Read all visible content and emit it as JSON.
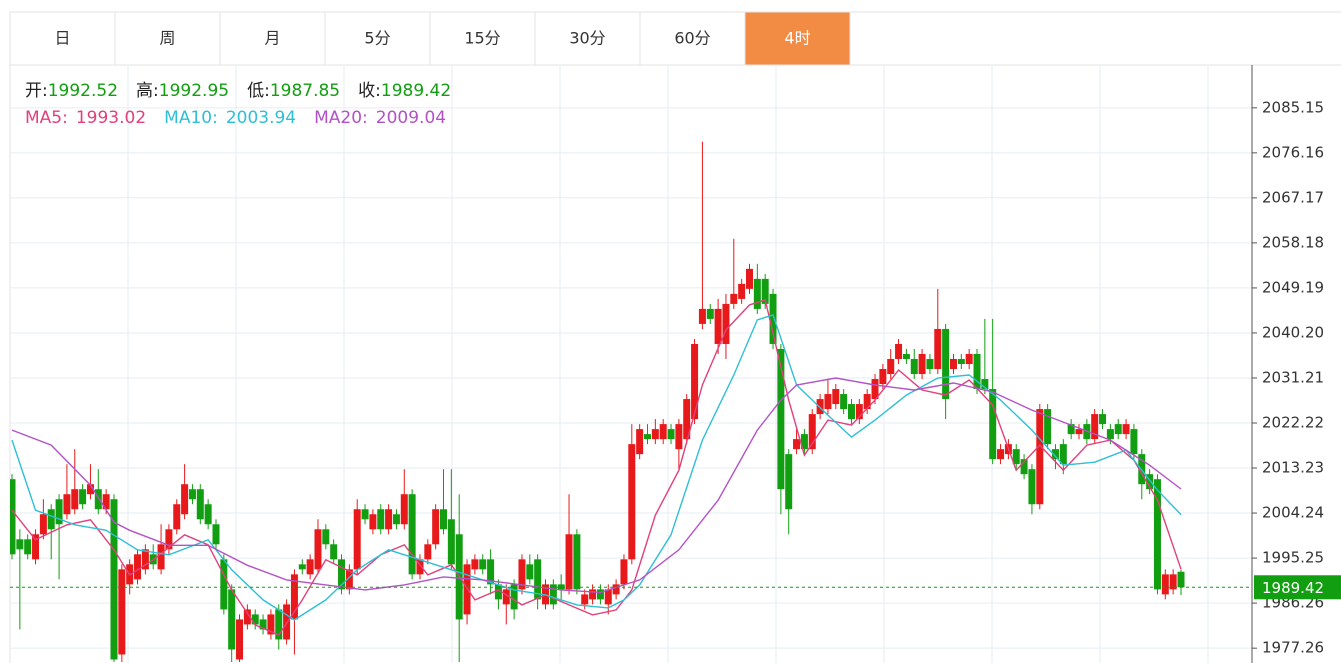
{
  "tabs": [
    "日",
    "周",
    "月",
    "5分",
    "15分",
    "30分",
    "60分",
    "4时"
  ],
  "active_tab": "4时",
  "chart_data": {
    "type": "candlestick",
    "ohlc_labels": [
      "开:",
      "高:",
      "低:",
      "收:"
    ],
    "up_color": "#e8191a",
    "down_color": "#119e11",
    "ylim": [
      1974.3,
      2093.7
    ],
    "yticks": [
      2085.15,
      2076.16,
      2067.17,
      2058.18,
      2049.19,
      {
        "value": 2040.2,
        "label": "2040.20"
      },
      2031.21,
      2022.22,
      2013.23,
      2004.24,
      1995.25,
      1986.26,
      1977.26
    ],
    "grid": true,
    "candles": [
      [
        2011,
        2012,
        1995,
        1996
      ],
      [
        1999,
        2001,
        1981,
        1997
      ],
      [
        1999,
        2000,
        1995,
        1996
      ],
      [
        1995,
        2001,
        1994,
        2000
      ],
      [
        2000,
        2007,
        1999,
        2004
      ],
      [
        2005,
        2006,
        1995,
        2001
      ],
      [
        2007,
        2008,
        1991,
        2002
      ],
      [
        2004,
        2014,
        2003,
        2008
      ],
      [
        2005,
        2017,
        2004,
        2009
      ],
      [
        2009,
        2010,
        2005,
        2006
      ],
      [
        2008,
        2014,
        2007,
        2010
      ],
      [
        2009,
        2013,
        2004,
        2005
      ],
      [
        2005,
        2009,
        2004,
        2008
      ],
      [
        2007,
        2008,
        1974.5,
        1975
      ],
      [
        1976,
        1994,
        1974.5,
        1993
      ],
      [
        1990,
        1995,
        1988,
        1994
      ],
      [
        1991,
        1997,
        1990,
        1996
      ],
      [
        1993,
        1998,
        1992,
        1997
      ],
      [
        1996,
        1998,
        1993,
        1994
      ],
      [
        1993,
        2002,
        1992,
        1998
      ],
      [
        1997,
        2002,
        1996,
        2001
      ],
      [
        2001,
        2007,
        2000,
        2006
      ],
      [
        2004,
        2014,
        2003,
        2010
      ],
      [
        2009,
        2010,
        2006,
        2007
      ],
      [
        2009,
        2010,
        2002,
        2003
      ],
      [
        2006,
        2007,
        2001,
        2002
      ],
      [
        2002,
        2003,
        1997,
        1998
      ],
      [
        1995,
        1996,
        1984,
        1985
      ],
      [
        1989,
        1990,
        1974.5,
        1977
      ],
      [
        1975,
        1984,
        1974.5,
        1983
      ],
      [
        1982,
        1986,
        1981,
        1985
      ],
      [
        1984,
        1985,
        1981,
        1982
      ],
      [
        1983,
        1984,
        1980,
        1981
      ],
      [
        1980,
        1985,
        1979,
        1984
      ],
      [
        1985,
        1986,
        1977,
        1979
      ],
      [
        1979,
        1987,
        1978,
        1986
      ],
      [
        1983,
        1993,
        1976,
        1992
      ],
      [
        1994,
        1995,
        1992,
        1993
      ],
      [
        1992,
        1996,
        1991,
        1995
      ],
      [
        1993,
        2003,
        1992,
        2001
      ],
      [
        2001,
        2002,
        1997,
        1998
      ],
      [
        1998,
        1999,
        1994,
        1995
      ],
      [
        1995,
        1996,
        1988,
        1989
      ],
      [
        1989,
        1994,
        1988,
        1993
      ],
      [
        1993,
        2007,
        1992,
        2005
      ],
      [
        2005,
        2006,
        2002,
        2003
      ],
      [
        2001,
        2005,
        2000,
        2004
      ],
      [
        2005,
        2006,
        2000,
        2001
      ],
      [
        2001,
        2006,
        2000,
        2005
      ],
      [
        2004,
        2005,
        2001,
        2002
      ],
      [
        2002,
        2013,
        2001,
        2008
      ],
      [
        2008,
        2009,
        1991,
        1992
      ],
      [
        1992,
        1996,
        1991,
        1995
      ],
      [
        1995,
        1999,
        1994,
        1998
      ],
      [
        1998,
        2006,
        1997,
        2005
      ],
      [
        2005,
        2013,
        2000,
        2001
      ],
      [
        2003,
        2013,
        1993,
        1994
      ],
      [
        2000,
        2008,
        1974.5,
        1983
      ],
      [
        1984,
        1995,
        1982,
        1994
      ],
      [
        1993,
        1996,
        1992,
        1995
      ],
      [
        1995,
        1996,
        1992,
        1993
      ],
      [
        1995,
        1997,
        1988,
        1990
      ],
      [
        1990,
        1991,
        1985,
        1987
      ],
      [
        1986,
        1990,
        1982,
        1989
      ],
      [
        1990,
        1991,
        1983,
        1985
      ],
      [
        1989,
        1996,
        1988,
        1995
      ],
      [
        1994,
        1996,
        1990,
        1991
      ],
      [
        1995,
        1996,
        1985,
        1987
      ],
      [
        1986,
        1991,
        1985,
        1990
      ],
      [
        1990,
        1991,
        1985,
        1986
      ],
      [
        1990,
        1992,
        1987,
        1989
      ],
      [
        1989,
        2008,
        1988,
        2000
      ],
      [
        2000,
        2001,
        1988,
        1989
      ],
      [
        1986,
        1989,
        1985,
        1988
      ],
      [
        1987,
        1990,
        1986,
        1989
      ],
      [
        1989,
        1990,
        1986,
        1987
      ],
      [
        1986,
        1990,
        1984,
        1989
      ],
      [
        1988,
        1991,
        1987,
        1990
      ],
      [
        1990,
        1996,
        1989,
        1995
      ],
      [
        1995,
        2022,
        1994,
        2018
      ],
      [
        2016,
        2022,
        2015,
        2021
      ],
      [
        2020,
        2022,
        2018,
        2019
      ],
      [
        2019,
        2023,
        2018,
        2021
      ],
      [
        2019,
        2023,
        2018,
        2022
      ],
      [
        2021,
        2022,
        2018,
        2019
      ],
      [
        2017,
        2023,
        2013,
        2022
      ],
      [
        2019,
        2028,
        2018,
        2027
      ],
      [
        2023,
        2039,
        2022,
        2038
      ],
      [
        2042,
        2078.4,
        2041,
        2045
      ],
      [
        2045,
        2046,
        2042,
        2043
      ],
      [
        2038,
        2047,
        2036,
        2045
      ],
      [
        2038,
        2048,
        2035,
        2046
      ],
      [
        2046,
        2059,
        2045,
        2048
      ],
      [
        2047,
        2051,
        2046,
        2050
      ],
      [
        2049,
        2054,
        2048,
        2053
      ],
      [
        2051,
        2054,
        2044,
        2045
      ],
      [
        2051,
        2052,
        2045,
        2046
      ],
      [
        2048,
        2049,
        2037,
        2038
      ],
      [
        2037,
        2038,
        2004,
        2009
      ],
      [
        2016,
        2017,
        2000,
        2005
      ],
      [
        2017,
        2021,
        2016,
        2019
      ],
      [
        2020,
        2021,
        2016,
        2017
      ],
      [
        2017,
        2025,
        2016,
        2024
      ],
      [
        2024,
        2028,
        2023,
        2027
      ],
      [
        2025,
        2031,
        2024,
        2028
      ],
      [
        2026,
        2030,
        2025,
        2029
      ],
      [
        2028,
        2029,
        2024,
        2025
      ],
      [
        2026,
        2027,
        2022,
        2023
      ],
      [
        2023,
        2027,
        2022,
        2026
      ],
      [
        2025,
        2029,
        2024,
        2028
      ],
      [
        2027,
        2032,
        2026,
        2031
      ],
      [
        2030,
        2034,
        2029,
        2033
      ],
      [
        2032,
        2037,
        2031,
        2035
      ],
      [
        2035,
        2039,
        2034,
        2038
      ],
      [
        2036,
        2037,
        2034,
        2035
      ],
      [
        2035,
        2037,
        2031,
        2032
      ],
      [
        2032,
        2037,
        2031,
        2036
      ],
      [
        2035,
        2036,
        2032,
        2033
      ],
      [
        2033,
        2049,
        2032,
        2041
      ],
      [
        2041,
        2042,
        2023,
        2027
      ],
      [
        2033,
        2036,
        2032,
        2035
      ],
      [
        2035,
        2036,
        2033,
        2034
      ],
      [
        2034,
        2037,
        2033,
        2036
      ],
      [
        2036,
        2037,
        2028,
        2029
      ],
      [
        2031,
        2043,
        2028,
        2029
      ],
      [
        2029,
        2043,
        2014,
        2015
      ],
      [
        2015,
        2018,
        2014,
        2017
      ],
      [
        2016,
        2019,
        2015,
        2018
      ],
      [
        2017,
        2018,
        2013,
        2014
      ],
      [
        2015,
        2016,
        2011,
        2012
      ],
      [
        2013,
        2014,
        2004,
        2006
      ],
      [
        2006,
        2026,
        2005,
        2025
      ],
      [
        2025,
        2026,
        2017,
        2018
      ],
      [
        2017,
        2018,
        2013,
        2015
      ],
      [
        2018,
        2019,
        2012,
        2014
      ],
      [
        2022,
        2023,
        2019,
        2020
      ],
      [
        2020,
        2022,
        2019,
        2021
      ],
      [
        2022,
        2023,
        2018,
        2019
      ],
      [
        2019,
        2025,
        2018,
        2024
      ],
      [
        2024,
        2025,
        2021,
        2022
      ],
      [
        2021,
        2022,
        2018,
        2019
      ],
      [
        2022,
        2023,
        2019,
        2020
      ],
      [
        2020,
        2023,
        2019,
        2022
      ],
      [
        2021,
        2022,
        2015,
        2016
      ],
      [
        2016,
        2017,
        2007,
        2010
      ],
      [
        2012,
        2013,
        2008,
        2009
      ],
      [
        2011,
        2012,
        1988,
        1989
      ],
      [
        1988,
        1993,
        1987,
        1992
      ],
      [
        1989,
        1993,
        1988,
        1992
      ],
      [
        1992.52,
        1992.95,
        1987.85,
        1989.42
      ]
    ],
    "series": [
      {
        "name": "MA5:",
        "color": "#e2407c",
        "x": [
          0,
          3,
          7,
          10,
          13,
          15,
          18,
          22,
          25,
          28,
          31,
          34,
          37,
          40,
          44,
          47,
          50,
          53,
          56,
          59,
          62,
          65,
          68,
          71,
          74,
          77,
          79,
          82,
          85,
          88,
          91,
          94,
          96,
          99,
          101,
          104,
          107,
          110,
          113,
          116,
          119,
          122,
          125,
          128,
          131,
          134,
          137,
          140,
          143,
          146,
          149
        ],
        "values": [
          2004.8,
          1998.9,
          2001.9,
          2002.9,
          1996.9,
          1991.9,
          1994.9,
          1999.9,
          1997.9,
          1988.9,
          1981.9,
          1979.9,
          1986.9,
          1994.9,
          1991.9,
          1995.9,
          1997.9,
          1991.9,
          1993.9,
          1986.9,
          1988.9,
          1985.9,
          1987.9,
          1985.9,
          1983.9,
          1984.9,
          1988.9,
          2003.8,
          2012.8,
          2029.8,
          2040.8,
          2045.8,
          2046.8,
          2026.8,
          2015.8,
          2022.8,
          2021.8,
          2026.8,
          2032.8,
          2028.8,
          2027.8,
          2030.8,
          2025.8,
          2012.8,
          2017.8,
          2012.8,
          2017.8,
          2018.8,
          2014.8,
          2006.8,
          1993.02
        ]
      },
      {
        "name": "MA10:",
        "color": "#2ebfd6",
        "x": [
          0,
          3,
          8,
          12,
          16,
          20,
          25,
          28,
          32,
          36,
          40,
          44,
          48,
          52,
          56,
          60,
          64,
          68,
          72,
          76,
          78,
          80,
          84,
          88,
          92,
          95,
          97,
          100,
          104,
          107,
          110,
          114,
          118,
          122,
          126,
          130,
          134,
          138,
          142,
          146,
          149
        ],
        "values": [
          2018.8,
          2004.8,
          2001.9,
          2000.8,
          1996.9,
          1995.9,
          1998.9,
          1992.9,
          1986.9,
          1982.9,
          1986.9,
          1992.9,
          1996.9,
          1994.9,
          1992.9,
          1990.9,
          1988.9,
          1987.9,
          1985.9,
          1985.3,
          1986.9,
          1989.9,
          1999.9,
          2018.8,
          2031.8,
          2042.8,
          2043.8,
          2029.8,
          2023.8,
          2019.4,
          2022.8,
          2027.8,
          2031.2,
          2031.8,
          2026.8,
          2020.8,
          2013.8,
          2014.4,
          2016.8,
          2008.8,
          2003.94
        ]
      },
      {
        "name": "MA20:",
        "color": "#b352c6",
        "x": [
          0,
          5,
          10,
          13,
          15,
          20,
          25,
          30,
          35,
          40,
          45,
          50,
          55,
          60,
          65,
          70,
          75,
          80,
          85,
          90,
          95,
          98,
          100,
          105,
          110,
          115,
          120,
          125,
          130,
          135,
          140,
          145,
          149
        ],
        "values": [
          2020.8,
          2017.8,
          2009.8,
          2002.4,
          2000.8,
          1997.8,
          1997.8,
          1993.8,
          1990.9,
          1989.9,
          1988.9,
          1989.9,
          1991.5,
          1990.9,
          1989.9,
          1988.9,
          1988.4,
          1990.9,
          1996.9,
          2006.8,
          2020.8,
          2026.8,
          2029.8,
          2031.2,
          2029.8,
          2028.8,
          2030.2,
          2028.4,
          2024.8,
          2021.8,
          2018.8,
          2013.8,
          2009.04
        ]
      }
    ]
  }
}
